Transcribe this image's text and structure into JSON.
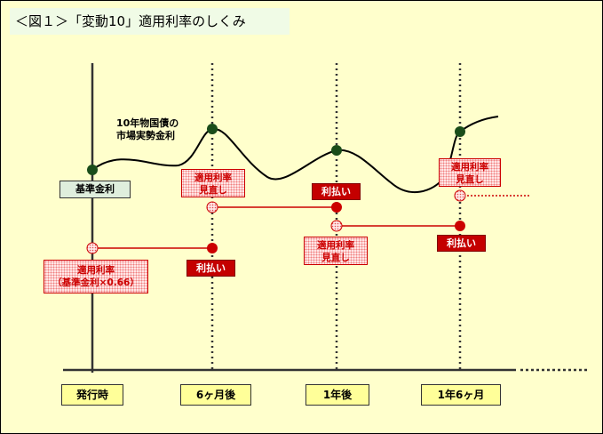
{
  "title": "＜図１＞「変動10」適用利率のしくみ",
  "market_rate_label_line1": "10年物国債の",
  "market_rate_label_line2": "市場実勢金利",
  "base_rate_label": "基準金利",
  "applied_rate_label": "適用利率",
  "applied_rate_formula": "（基準金利×0.66）",
  "review_label_line1": "適用利率",
  "review_label_line2": "見直し",
  "payment_label": "利払い",
  "timeline": [
    "発行時",
    "6ヶ月後",
    "1年後",
    "1年6ヶ月"
  ],
  "colors": {
    "background": "#ffffcc",
    "payment": "#cc0000",
    "market_point": "#1a4d1a",
    "title_bg": "#f0fbe6"
  }
}
